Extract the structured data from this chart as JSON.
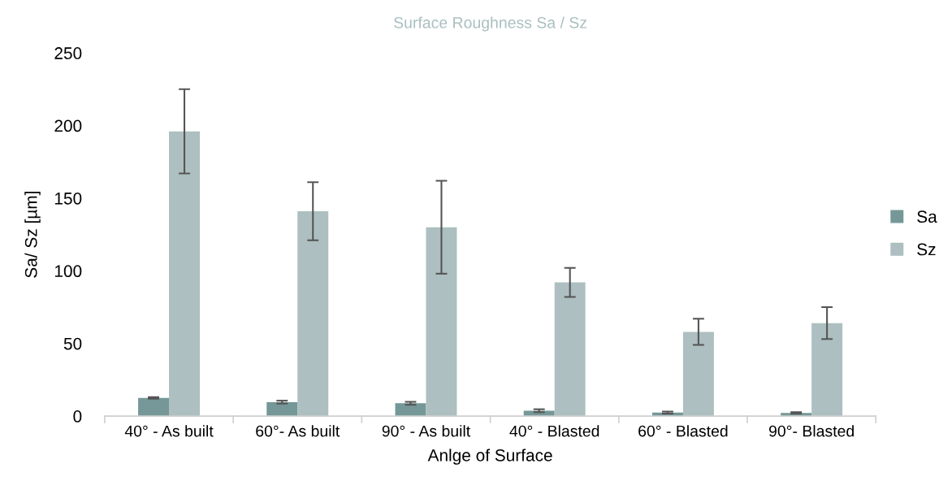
{
  "chart_data": {
    "type": "bar",
    "title": "Surface Roughness Sa / Sz",
    "xlabel": "Anlge of Surface",
    "ylabel": "Sa/ Sz [µm]",
    "categories": [
      "40° - As built",
      "60°- As built",
      "90° - As built",
      "40° - Blasted",
      "60° - Blasted",
      "90°- Blasted"
    ],
    "series": [
      {
        "name": "Sa",
        "color": "#759797",
        "values": [
          12.5,
          9.6,
          8.8,
          3.7,
          2.4,
          2.2
        ],
        "errors": [
          0.5,
          1,
          1,
          1,
          0.7,
          0.5
        ]
      },
      {
        "name": "Sz",
        "color": "#adbfc0",
        "values": [
          196,
          141,
          130,
          92,
          58,
          64
        ],
        "errors": [
          29,
          20,
          32,
          10,
          9,
          11
        ]
      }
    ],
    "ylim": [
      0,
      250
    ],
    "yticks": [
      0,
      50,
      100,
      150,
      200,
      250
    ],
    "grid": false,
    "legend": "right"
  }
}
